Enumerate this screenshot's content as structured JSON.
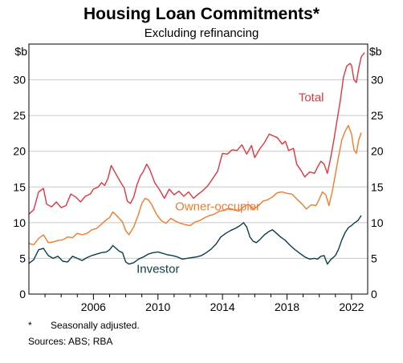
{
  "chart_data": {
    "type": "line",
    "title": "Housing Loan Commitments*",
    "subtitle": "Excluding refinancing",
    "y_unit_left": "$b",
    "y_unit_right": "$b",
    "ylim": [
      0,
      35
    ],
    "yticks": [
      0,
      5,
      10,
      15,
      20,
      25,
      30
    ],
    "xlim": [
      2002.0,
      2023.0
    ],
    "xticks": [
      2006,
      2010,
      2014,
      2018,
      2022
    ],
    "grid": true,
    "series": [
      {
        "name": "Total",
        "color": "#e5343f",
        "points": [
          [
            2002.0,
            11.2
          ],
          [
            2002.3,
            11.8
          ],
          [
            2002.6,
            14.3
          ],
          [
            2002.9,
            14.8
          ],
          [
            2003.1,
            12.6
          ],
          [
            2003.4,
            12.2
          ],
          [
            2003.7,
            12.9
          ],
          [
            2004.0,
            12.1
          ],
          [
            2004.3,
            12.4
          ],
          [
            2004.6,
            14.0
          ],
          [
            2004.9,
            13.6
          ],
          [
            2005.2,
            12.9
          ],
          [
            2005.5,
            13.7
          ],
          [
            2005.8,
            14.0
          ],
          [
            2006.0,
            14.7
          ],
          [
            2006.3,
            15.0
          ],
          [
            2006.5,
            15.6
          ],
          [
            2006.7,
            15.2
          ],
          [
            2006.9,
            16.2
          ],
          [
            2007.1,
            18.0
          ],
          [
            2007.3,
            17.2
          ],
          [
            2007.5,
            16.4
          ],
          [
            2007.7,
            15.6
          ],
          [
            2007.9,
            14.9
          ],
          [
            2008.1,
            13.0
          ],
          [
            2008.3,
            12.7
          ],
          [
            2008.5,
            13.6
          ],
          [
            2008.7,
            15.3
          ],
          [
            2008.9,
            16.5
          ],
          [
            2009.1,
            17.2
          ],
          [
            2009.3,
            18.2
          ],
          [
            2009.5,
            17.4
          ],
          [
            2009.8,
            15.6
          ],
          [
            2010.1,
            14.6
          ],
          [
            2010.4,
            13.4
          ],
          [
            2010.7,
            14.7
          ],
          [
            2011.0,
            13.9
          ],
          [
            2011.3,
            14.4
          ],
          [
            2011.6,
            13.7
          ],
          [
            2011.9,
            14.3
          ],
          [
            2012.2,
            13.4
          ],
          [
            2012.5,
            14.0
          ],
          [
            2012.8,
            14.5
          ],
          [
            2013.1,
            15.2
          ],
          [
            2013.4,
            16.2
          ],
          [
            2013.7,
            17.2
          ],
          [
            2014.0,
            19.7
          ],
          [
            2014.3,
            19.6
          ],
          [
            2014.6,
            20.2
          ],
          [
            2014.9,
            20.1
          ],
          [
            2015.2,
            20.9
          ],
          [
            2015.5,
            19.6
          ],
          [
            2015.8,
            20.8
          ],
          [
            2016.0,
            19.1
          ],
          [
            2016.3,
            20.3
          ],
          [
            2016.6,
            21.2
          ],
          [
            2016.9,
            22.4
          ],
          [
            2017.1,
            22.2
          ],
          [
            2017.4,
            21.9
          ],
          [
            2017.7,
            21.0
          ],
          [
            2017.9,
            21.4
          ],
          [
            2018.1,
            20.1
          ],
          [
            2018.4,
            20.4
          ],
          [
            2018.6,
            18.2
          ],
          [
            2018.9,
            17.2
          ],
          [
            2019.1,
            16.4
          ],
          [
            2019.4,
            17.1
          ],
          [
            2019.7,
            16.9
          ],
          [
            2019.9,
            17.8
          ],
          [
            2020.1,
            18.6
          ],
          [
            2020.3,
            18.2
          ],
          [
            2020.5,
            16.9
          ],
          [
            2020.7,
            19.0
          ],
          [
            2020.9,
            21.5
          ],
          [
            2021.1,
            24.3
          ],
          [
            2021.3,
            27.0
          ],
          [
            2021.5,
            30.4
          ],
          [
            2021.7,
            31.9
          ],
          [
            2021.9,
            32.3
          ],
          [
            2022.0,
            32.0
          ],
          [
            2022.15,
            30.0
          ],
          [
            2022.3,
            29.6
          ],
          [
            2022.45,
            31.6
          ],
          [
            2022.6,
            33.2
          ],
          [
            2022.8,
            33.8
          ]
        ]
      },
      {
        "name": "Owner-occupier",
        "color": "#f27a2b",
        "points": [
          [
            2002.0,
            7.1
          ],
          [
            2002.3,
            6.9
          ],
          [
            2002.6,
            7.8
          ],
          [
            2002.9,
            8.3
          ],
          [
            2003.2,
            7.2
          ],
          [
            2003.5,
            7.3
          ],
          [
            2003.8,
            7.5
          ],
          [
            2004.1,
            7.6
          ],
          [
            2004.4,
            8.0
          ],
          [
            2004.7,
            7.9
          ],
          [
            2005.0,
            8.5
          ],
          [
            2005.3,
            8.3
          ],
          [
            2005.6,
            8.5
          ],
          [
            2005.9,
            9.0
          ],
          [
            2006.2,
            9.2
          ],
          [
            2006.5,
            9.8
          ],
          [
            2006.8,
            10.4
          ],
          [
            2007.0,
            10.7
          ],
          [
            2007.2,
            11.5
          ],
          [
            2007.4,
            11.1
          ],
          [
            2007.6,
            10.6
          ],
          [
            2007.8,
            10.1
          ],
          [
            2008.0,
            8.9
          ],
          [
            2008.2,
            8.3
          ],
          [
            2008.5,
            9.4
          ],
          [
            2008.8,
            11.2
          ],
          [
            2009.0,
            12.7
          ],
          [
            2009.2,
            13.4
          ],
          [
            2009.4,
            13.2
          ],
          [
            2009.6,
            12.6
          ],
          [
            2009.9,
            11.2
          ],
          [
            2010.2,
            10.3
          ],
          [
            2010.5,
            9.9
          ],
          [
            2010.8,
            10.6
          ],
          [
            2011.1,
            10.2
          ],
          [
            2011.4,
            9.9
          ],
          [
            2011.7,
            9.7
          ],
          [
            2012.0,
            9.6
          ],
          [
            2012.3,
            10.1
          ],
          [
            2012.6,
            10.3
          ],
          [
            2012.9,
            10.7
          ],
          [
            2013.2,
            11.0
          ],
          [
            2013.5,
            11.2
          ],
          [
            2013.8,
            11.6
          ],
          [
            2014.1,
            11.7
          ],
          [
            2014.4,
            12.0
          ],
          [
            2014.7,
            11.8
          ],
          [
            2015.0,
            11.6
          ],
          [
            2015.3,
            12.2
          ],
          [
            2015.6,
            12.6
          ],
          [
            2015.9,
            11.9
          ],
          [
            2016.2,
            12.3
          ],
          [
            2016.5,
            13.0
          ],
          [
            2016.8,
            13.2
          ],
          [
            2017.1,
            13.6
          ],
          [
            2017.4,
            14.2
          ],
          [
            2017.7,
            14.3
          ],
          [
            2018.0,
            14.1
          ],
          [
            2018.3,
            14.0
          ],
          [
            2018.6,
            13.3
          ],
          [
            2018.9,
            12.7
          ],
          [
            2019.2,
            11.9
          ],
          [
            2019.5,
            12.5
          ],
          [
            2019.8,
            12.4
          ],
          [
            2020.0,
            13.3
          ],
          [
            2020.2,
            14.3
          ],
          [
            2020.4,
            13.9
          ],
          [
            2020.6,
            12.4
          ],
          [
            2020.8,
            14.3
          ],
          [
            2021.0,
            16.8
          ],
          [
            2021.2,
            19.3
          ],
          [
            2021.4,
            21.6
          ],
          [
            2021.6,
            22.8
          ],
          [
            2021.8,
            23.6
          ],
          [
            2022.0,
            22.4
          ],
          [
            2022.15,
            20.2
          ],
          [
            2022.3,
            19.7
          ],
          [
            2022.45,
            21.6
          ],
          [
            2022.6,
            22.6
          ]
        ]
      },
      {
        "name": "Investor",
        "color": "#0b3d4a",
        "points": [
          [
            2002.0,
            4.3
          ],
          [
            2002.3,
            4.8
          ],
          [
            2002.6,
            6.2
          ],
          [
            2002.9,
            6.4
          ],
          [
            2003.2,
            5.4
          ],
          [
            2003.5,
            5.0
          ],
          [
            2003.8,
            5.3
          ],
          [
            2004.1,
            4.6
          ],
          [
            2004.4,
            4.5
          ],
          [
            2004.7,
            5.3
          ],
          [
            2005.0,
            5.0
          ],
          [
            2005.3,
            4.7
          ],
          [
            2005.6,
            5.1
          ],
          [
            2005.9,
            5.4
          ],
          [
            2006.2,
            5.6
          ],
          [
            2006.5,
            5.8
          ],
          [
            2006.8,
            5.9
          ],
          [
            2007.0,
            6.2
          ],
          [
            2007.2,
            6.8
          ],
          [
            2007.4,
            6.4
          ],
          [
            2007.6,
            6.0
          ],
          [
            2007.8,
            5.8
          ],
          [
            2008.0,
            4.5
          ],
          [
            2008.2,
            4.2
          ],
          [
            2008.5,
            4.4
          ],
          [
            2008.8,
            4.9
          ],
          [
            2009.1,
            5.2
          ],
          [
            2009.4,
            5.6
          ],
          [
            2009.7,
            5.8
          ],
          [
            2010.0,
            5.9
          ],
          [
            2010.3,
            5.7
          ],
          [
            2010.6,
            5.5
          ],
          [
            2010.9,
            5.4
          ],
          [
            2011.2,
            5.2
          ],
          [
            2011.5,
            4.9
          ],
          [
            2011.8,
            5.0
          ],
          [
            2012.1,
            5.1
          ],
          [
            2012.4,
            5.2
          ],
          [
            2012.7,
            5.4
          ],
          [
            2013.0,
            5.8
          ],
          [
            2013.3,
            6.3
          ],
          [
            2013.6,
            7.0
          ],
          [
            2013.9,
            8.0
          ],
          [
            2014.2,
            8.5
          ],
          [
            2014.5,
            8.9
          ],
          [
            2014.8,
            9.2
          ],
          [
            2015.1,
            9.6
          ],
          [
            2015.3,
            10.0
          ],
          [
            2015.5,
            9.4
          ],
          [
            2015.7,
            8.0
          ],
          [
            2015.9,
            7.4
          ],
          [
            2016.1,
            7.2
          ],
          [
            2016.3,
            7.6
          ],
          [
            2016.6,
            8.3
          ],
          [
            2016.9,
            8.8
          ],
          [
            2017.1,
            9.0
          ],
          [
            2017.3,
            8.6
          ],
          [
            2017.6,
            8.0
          ],
          [
            2017.9,
            7.5
          ],
          [
            2018.2,
            6.8
          ],
          [
            2018.5,
            6.2
          ],
          [
            2018.8,
            5.7
          ],
          [
            2019.1,
            5.2
          ],
          [
            2019.4,
            4.9
          ],
          [
            2019.7,
            5.0
          ],
          [
            2019.9,
            4.9
          ],
          [
            2020.1,
            5.3
          ],
          [
            2020.3,
            5.4
          ],
          [
            2020.5,
            4.2
          ],
          [
            2020.7,
            4.8
          ],
          [
            2021.0,
            5.4
          ],
          [
            2021.2,
            6.3
          ],
          [
            2021.4,
            7.6
          ],
          [
            2021.6,
            8.6
          ],
          [
            2021.8,
            9.3
          ],
          [
            2022.0,
            9.6
          ],
          [
            2022.2,
            10.0
          ],
          [
            2022.4,
            10.3
          ],
          [
            2022.6,
            11.0
          ]
        ]
      }
    ],
    "series_labels": [
      {
        "text": "Total",
        "x": 2019.5,
        "y": 27.0
      },
      {
        "text": "Owner-occupier",
        "x": 2013.7,
        "y": 11.7
      },
      {
        "text": "Investor",
        "x": 2010.0,
        "y": 3.0
      }
    ]
  },
  "footnote": {
    "mark": "*",
    "text": "Seasonally adjusted."
  },
  "sources": "Sources: ABS; RBA"
}
